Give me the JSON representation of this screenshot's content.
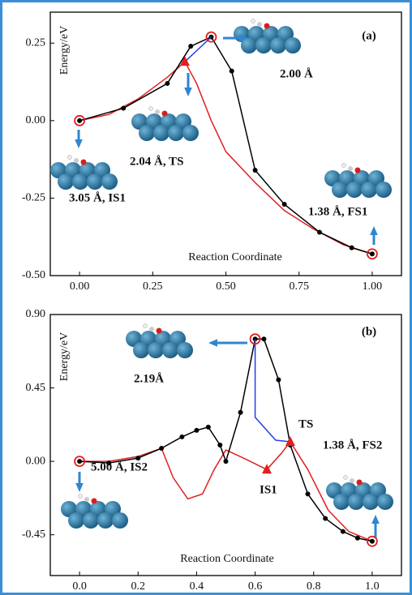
{
  "chart_data": [
    {
      "type": "line",
      "panel_label": "(a)",
      "xlabel": "Reaction Coordinate",
      "ylabel": "Energy/eV",
      "xlim": [
        -0.1,
        1.1
      ],
      "ylim": [
        -0.5,
        0.35
      ],
      "xticks": [
        {
          "value": 0,
          "label": "0.00"
        },
        {
          "value": 0.25,
          "label": "0.25"
        },
        {
          "value": 0.5,
          "label": "0.50"
        },
        {
          "value": 0.75,
          "label": "0.75"
        },
        {
          "value": 1,
          "label": "1.00"
        }
      ],
      "yticks": [
        {
          "value": -0.5,
          "label": "-0.50"
        },
        {
          "value": -0.25,
          "label": "-0.25"
        },
        {
          "value": 0,
          "label": "0.00"
        },
        {
          "value": 0.25,
          "label": "0.25"
        }
      ],
      "annotations": [
        "2.00 Å",
        "2.04 Å, TS",
        "3.05 Å, IS1",
        "1.38 Å, FS1"
      ],
      "series": [
        {
          "color": "#e02020",
          "marker": "none",
          "x": [
            0,
            0.1,
            0.2,
            0.3,
            0.36,
            0.4,
            0.45,
            0.5,
            0.6,
            0.7,
            0.8,
            0.9,
            1.0
          ],
          "values": [
            0,
            0.02,
            0.07,
            0.14,
            0.19,
            0.12,
            0.0,
            -0.1,
            -0.2,
            -0.29,
            -0.35,
            -0.4,
            -0.43
          ]
        },
        {
          "color": "#000000",
          "marker": "dot",
          "x": [
            0,
            0.15,
            0.3,
            0.38,
            0.45,
            0.52,
            0.6,
            0.7,
            0.82,
            0.93,
            1.0
          ],
          "values": [
            0,
            0.04,
            0.12,
            0.24,
            0.27,
            0.16,
            -0.16,
            -0.27,
            -0.36,
            -0.41,
            -0.43
          ]
        },
        {
          "color": "#2040e0",
          "marker": "none",
          "x": [
            0.36,
            0.45
          ],
          "values": [
            0.19,
            0.27
          ]
        },
        {
          "color": "#e02020",
          "marker": "ring",
          "x": [
            0,
            0.45,
            1.0
          ],
          "values": [
            0,
            0.27,
            -0.43
          ]
        },
        {
          "color": "#e02020",
          "marker": "triangle",
          "x": [
            0.36
          ],
          "values": [
            0.19
          ]
        }
      ]
    },
    {
      "type": "line",
      "panel_label": "(b)",
      "xlabel": "Reaction Coordinate",
      "ylabel": "Energy/eV",
      "xlim": [
        -0.1,
        1.1
      ],
      "ylim": [
        -0.7,
        0.9
      ],
      "xticks": [
        {
          "value": 0,
          "label": "0.0"
        },
        {
          "value": 0.2,
          "label": "0.2"
        },
        {
          "value": 0.4,
          "label": "0.4"
        },
        {
          "value": 0.6,
          "label": "0.6"
        },
        {
          "value": 0.8,
          "label": "0.8"
        },
        {
          "value": 1,
          "label": "1.0"
        }
      ],
      "yticks": [
        {
          "value": -0.45,
          "label": "-0.45"
        },
        {
          "value": 0,
          "label": "0.00"
        },
        {
          "value": 0.45,
          "label": "0.45"
        },
        {
          "value": 0.9,
          "label": "0.90"
        }
      ],
      "annotations": [
        "2.19Å",
        "TS",
        "1.38 Å, FS2",
        "5.00 Å, IS2",
        "IS1"
      ],
      "series": [
        {
          "color": "#e02020",
          "marker": "none",
          "x": [
            0,
            0.1,
            0.2,
            0.28,
            0.32,
            0.37,
            0.42,
            0.46,
            0.5,
            0.56,
            0.64,
            0.69,
            0.72,
            0.78,
            0.85,
            0.92,
            1.0
          ],
          "values": [
            0,
            0.0,
            0.03,
            0.08,
            -0.1,
            -0.23,
            -0.2,
            -0.05,
            0.07,
            0.02,
            -0.05,
            0.05,
            0.12,
            -0.05,
            -0.3,
            -0.43,
            -0.49
          ]
        },
        {
          "color": "#000000",
          "marker": "dot",
          "x": [
            0,
            0.1,
            0.2,
            0.28,
            0.35,
            0.4,
            0.44,
            0.48,
            0.5,
            0.55,
            0.6,
            0.63,
            0.68,
            0.72,
            0.78,
            0.84,
            0.9,
            0.95,
            1.0
          ],
          "values": [
            0,
            -0.01,
            0.02,
            0.08,
            0.15,
            0.19,
            0.21,
            0.1,
            0.0,
            0.3,
            0.75,
            0.75,
            0.5,
            0.1,
            -0.2,
            -0.35,
            -0.43,
            -0.47,
            -0.49
          ]
        },
        {
          "color": "#2040e0",
          "marker": "none",
          "x": [
            0.6,
            0.6,
            0.67,
            0.72
          ],
          "values": [
            0.75,
            0.27,
            0.13,
            0.12
          ]
        },
        {
          "color": "#e02020",
          "marker": "ring",
          "x": [
            0,
            0.6,
            1.0
          ],
          "values": [
            0,
            0.75,
            -0.49
          ]
        },
        {
          "color": "#e02020",
          "marker": "triangle",
          "x": [
            0.64,
            0.72
          ],
          "values": [
            -0.05,
            0.12
          ]
        }
      ]
    }
  ]
}
